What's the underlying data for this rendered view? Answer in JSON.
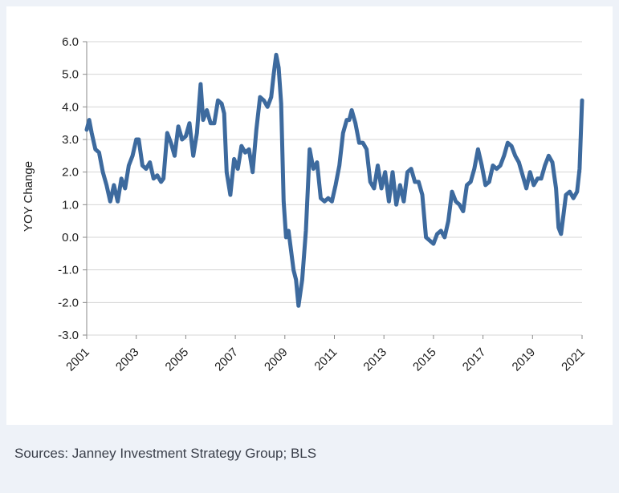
{
  "chart_data": {
    "type": "line",
    "title": "",
    "xlabel": "",
    "ylabel": "YOY Change",
    "ylim": [
      -3.0,
      6.0
    ],
    "xlim": [
      2001,
      2021
    ],
    "y_ticks": [
      6.0,
      5.0,
      4.0,
      3.0,
      2.0,
      1.0,
      0.0,
      -1.0,
      -2.0,
      -3.0
    ],
    "y_tick_labels": [
      "6.0",
      "5.0",
      "4.0",
      "3.0",
      "2.0",
      "1.0",
      "0.0",
      "-1.0",
      "-2.0",
      "-3.0"
    ],
    "x_tick_labels": [
      "2001",
      "2003",
      "2005",
      "2007",
      "2009",
      "2011",
      "2013",
      "2015",
      "2017",
      "2019",
      "2021"
    ],
    "x_ticks": [
      2001,
      2003,
      2005,
      2007,
      2009,
      2011,
      2013,
      2015,
      2017,
      2019,
      2021
    ],
    "grid": true,
    "series": [
      {
        "name": "YOY Change",
        "color": "#3d6a9e",
        "x": [
          2001.0,
          2001.1,
          2001.2,
          2001.35,
          2001.5,
          2001.65,
          2001.8,
          2001.95,
          2002.1,
          2002.25,
          2002.4,
          2002.55,
          2002.7,
          2002.85,
          2003.0,
          2003.1,
          2003.25,
          2003.4,
          2003.55,
          2003.7,
          2003.85,
          2004.0,
          2004.1,
          2004.25,
          2004.4,
          2004.55,
          2004.7,
          2004.85,
          2005.0,
          2005.15,
          2005.3,
          2005.45,
          2005.6,
          2005.7,
          2005.85,
          2006.0,
          2006.15,
          2006.3,
          2006.45,
          2006.55,
          2006.65,
          2006.8,
          2006.95,
          2007.1,
          2007.25,
          2007.4,
          2007.55,
          2007.7,
          2007.85,
          2008.0,
          2008.15,
          2008.3,
          2008.45,
          2008.55,
          2008.65,
          2008.75,
          2008.85,
          2008.95,
          2009.05,
          2009.15,
          2009.25,
          2009.35,
          2009.45,
          2009.55,
          2009.7,
          2009.85,
          2010.0,
          2010.15,
          2010.3,
          2010.45,
          2010.6,
          2010.75,
          2010.9,
          2011.05,
          2011.2,
          2011.35,
          2011.5,
          2011.6,
          2011.7,
          2011.85,
          2012.0,
          2012.15,
          2012.3,
          2012.45,
          2012.6,
          2012.75,
          2012.9,
          2013.05,
          2013.2,
          2013.35,
          2013.5,
          2013.65,
          2013.8,
          2013.95,
          2014.1,
          2014.25,
          2014.4,
          2014.55,
          2014.7,
          2014.85,
          2015.0,
          2015.15,
          2015.3,
          2015.45,
          2015.6,
          2015.75,
          2015.9,
          2016.05,
          2016.2,
          2016.35,
          2016.5,
          2016.65,
          2016.8,
          2016.95,
          2017.1,
          2017.25,
          2017.4,
          2017.55,
          2017.7,
          2017.85,
          2018.0,
          2018.15,
          2018.3,
          2018.45,
          2018.6,
          2018.75,
          2018.9,
          2019.05,
          2019.2,
          2019.35,
          2019.5,
          2019.65,
          2019.8,
          2019.95,
          2020.05,
          2020.15,
          2020.25,
          2020.35,
          2020.5,
          2020.65,
          2020.8,
          2020.9,
          2021.0
        ],
        "values": [
          3.3,
          3.6,
          3.2,
          2.7,
          2.6,
          2.0,
          1.6,
          1.1,
          1.6,
          1.1,
          1.8,
          1.5,
          2.2,
          2.5,
          3.0,
          3.0,
          2.2,
          2.1,
          2.3,
          1.8,
          1.9,
          1.7,
          1.8,
          3.2,
          2.9,
          2.5,
          3.4,
          3.0,
          3.1,
          3.5,
          2.5,
          3.2,
          4.7,
          3.6,
          3.9,
          3.5,
          3.5,
          4.2,
          4.1,
          3.8,
          2.0,
          1.3,
          2.4,
          2.1,
          2.8,
          2.6,
          2.7,
          2.0,
          3.3,
          4.3,
          4.2,
          4.0,
          4.3,
          5.0,
          5.6,
          5.2,
          4.1,
          1.1,
          0.0,
          0.2,
          -0.4,
          -1.0,
          -1.3,
          -2.1,
          -1.3,
          0.2,
          2.7,
          2.1,
          2.3,
          1.2,
          1.1,
          1.2,
          1.1,
          1.6,
          2.2,
          3.2,
          3.6,
          3.6,
          3.9,
          3.5,
          2.9,
          2.9,
          2.7,
          1.7,
          1.5,
          2.2,
          1.5,
          2.0,
          1.1,
          2.0,
          1.0,
          1.6,
          1.1,
          2.0,
          2.1,
          1.7,
          1.7,
          1.3,
          0.0,
          -0.1,
          -0.2,
          0.1,
          0.2,
          0.0,
          0.5,
          1.4,
          1.1,
          1.0,
          0.8,
          1.6,
          1.7,
          2.1,
          2.7,
          2.2,
          1.6,
          1.7,
          2.2,
          2.1,
          2.2,
          2.5,
          2.9,
          2.8,
          2.5,
          2.3,
          1.9,
          1.5,
          2.0,
          1.6,
          1.8,
          1.8,
          2.2,
          2.5,
          2.3,
          1.5,
          0.3,
          0.1,
          0.7,
          1.3,
          1.4,
          1.2,
          1.4,
          2.1,
          4.2
        ]
      }
    ]
  },
  "source": "Sources: Janney Investment Strategy Group; BLS"
}
